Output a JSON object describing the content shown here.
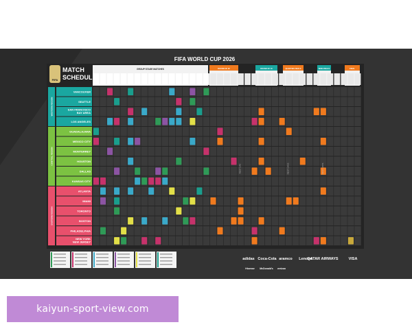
{
  "poster": {
    "title": "FIFA WORLD CUP 2026",
    "schedule_title_1": "MATCH",
    "schedule_title_2": "SCHEDULE",
    "logo_text": "FIFA",
    "section_header": "GROUP STAGE MATCHES",
    "stage_headers": [
      {
        "label": "ROUND OF 32",
        "color": "#f07a1e"
      },
      {
        "label": "ROUND OF 16",
        "color": "#1aa7a0"
      },
      {
        "label": "QUARTER-FINALS",
        "color": "#f07a1e"
      },
      {
        "label": "SEMI-FINALS",
        "color": "#1aa7a0"
      },
      {
        "label": "FINAL",
        "color": "#f07a1e"
      }
    ],
    "regions": [
      {
        "name": "WESTERN REGION",
        "color": "#1aa7a0",
        "cities": [
          "VANCOUVER",
          "SEATTLE",
          "SAN FRANCISCO BAY AREA",
          "LOS ANGELES"
        ]
      },
      {
        "name": "CENTRAL REGION",
        "color": "#7cc242",
        "cities": [
          "GUADALAJARA",
          "MEXICO CITY",
          "MONTERREY",
          "HOUSTON",
          "DALLAS",
          "KANSAS CITY"
        ]
      },
      {
        "name": "EASTERN REGION",
        "color": "#e8506c",
        "cities": [
          "ATLANTA",
          "MIAMI",
          "TORONTO",
          "BOSTON",
          "PHILADELPHIA",
          "NEW YORK NEW JERSEY"
        ]
      }
    ],
    "rest_days": [
      "REST DAY",
      "REST DAYS",
      "REST DAYS"
    ],
    "sponsors": [
      "adidas",
      "Coca-Cola",
      "aramco",
      "Lenovo",
      "QATAR AIRWAYS",
      "VISA",
      "Hisense",
      "McDonald's",
      "verizon"
    ],
    "colors": {
      "group_a": "#2f9a57",
      "group_b": "#c6326b",
      "group_c": "#3aa9c9",
      "group_d": "#8c54a3",
      "group_e": "#e2df48",
      "group_f": "#1a9e8d",
      "knockout": "#f07a1e",
      "grid": "#3a3a3a"
    }
  },
  "banner": {
    "url": "kaiyun-sport-view.com",
    "color": "#c08ad6"
  }
}
